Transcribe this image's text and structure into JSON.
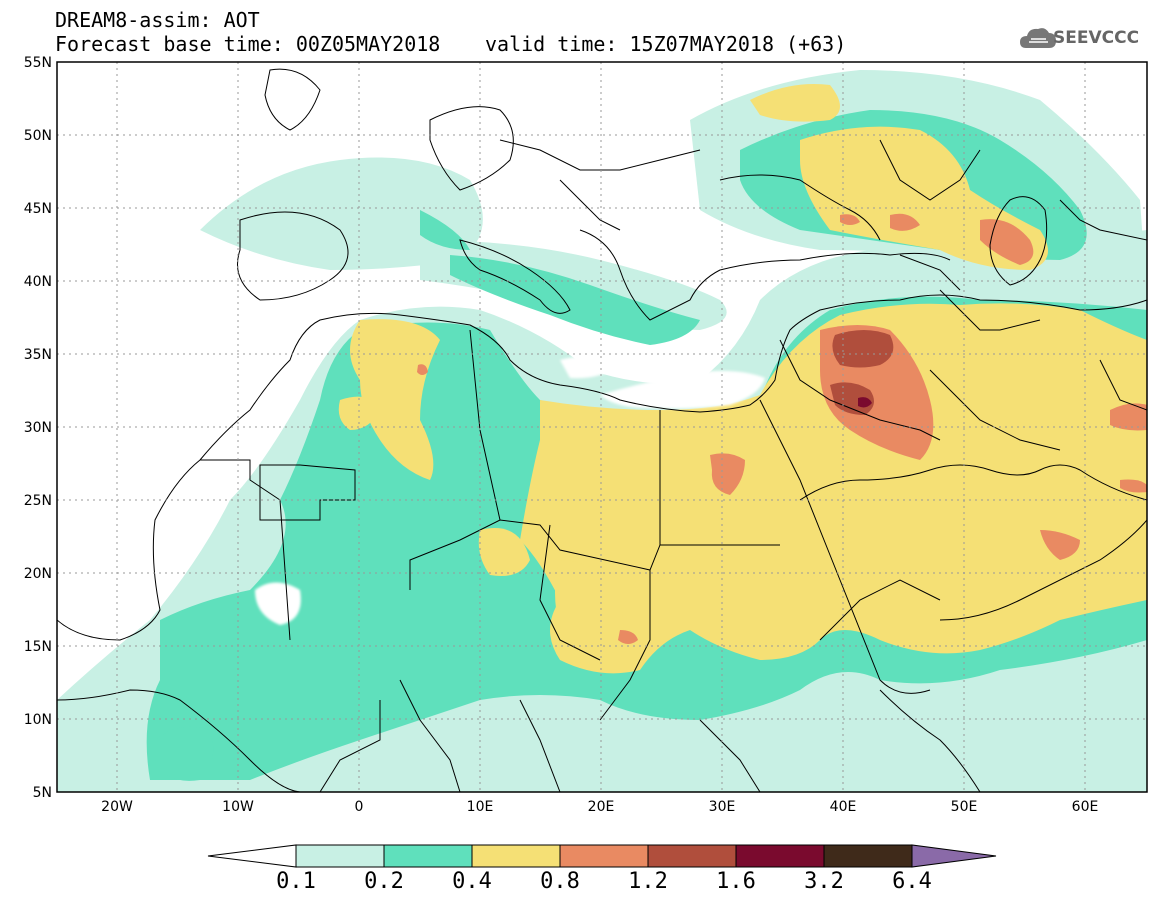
{
  "header": {
    "title": "DREAM8-assim: AOT",
    "base_time": "Forecast base time: 00Z05MAY2018",
    "valid_time": "valid time: 15Z07MAY2018 (+63)",
    "logo_text": "SEEVCCC"
  },
  "map": {
    "lat_range": [
      5,
      55
    ],
    "lon_range": [
      -25,
      65
    ],
    "lat_labels": [
      "55N",
      "50N",
      "45N",
      "40N",
      "35N",
      "30N",
      "25N",
      "20N",
      "15N",
      "10N",
      "5N"
    ],
    "lon_labels": [
      "20W",
      "10W",
      "0",
      "10E",
      "20E",
      "30E",
      "40E",
      "50E",
      "60E"
    ],
    "grid": true
  },
  "colorbar": {
    "levels": [
      "0.1",
      "0.2",
      "0.4",
      "0.8",
      "1.2",
      "1.6",
      "3.2",
      "6.4"
    ],
    "colors": [
      "#ffffff",
      "#c8f0e4",
      "#5fe0bc",
      "#f5e075",
      "#e98a62",
      "#b04e3c",
      "#7a0a2e",
      "#3f2a1a",
      "#8a6aa8"
    ]
  }
}
